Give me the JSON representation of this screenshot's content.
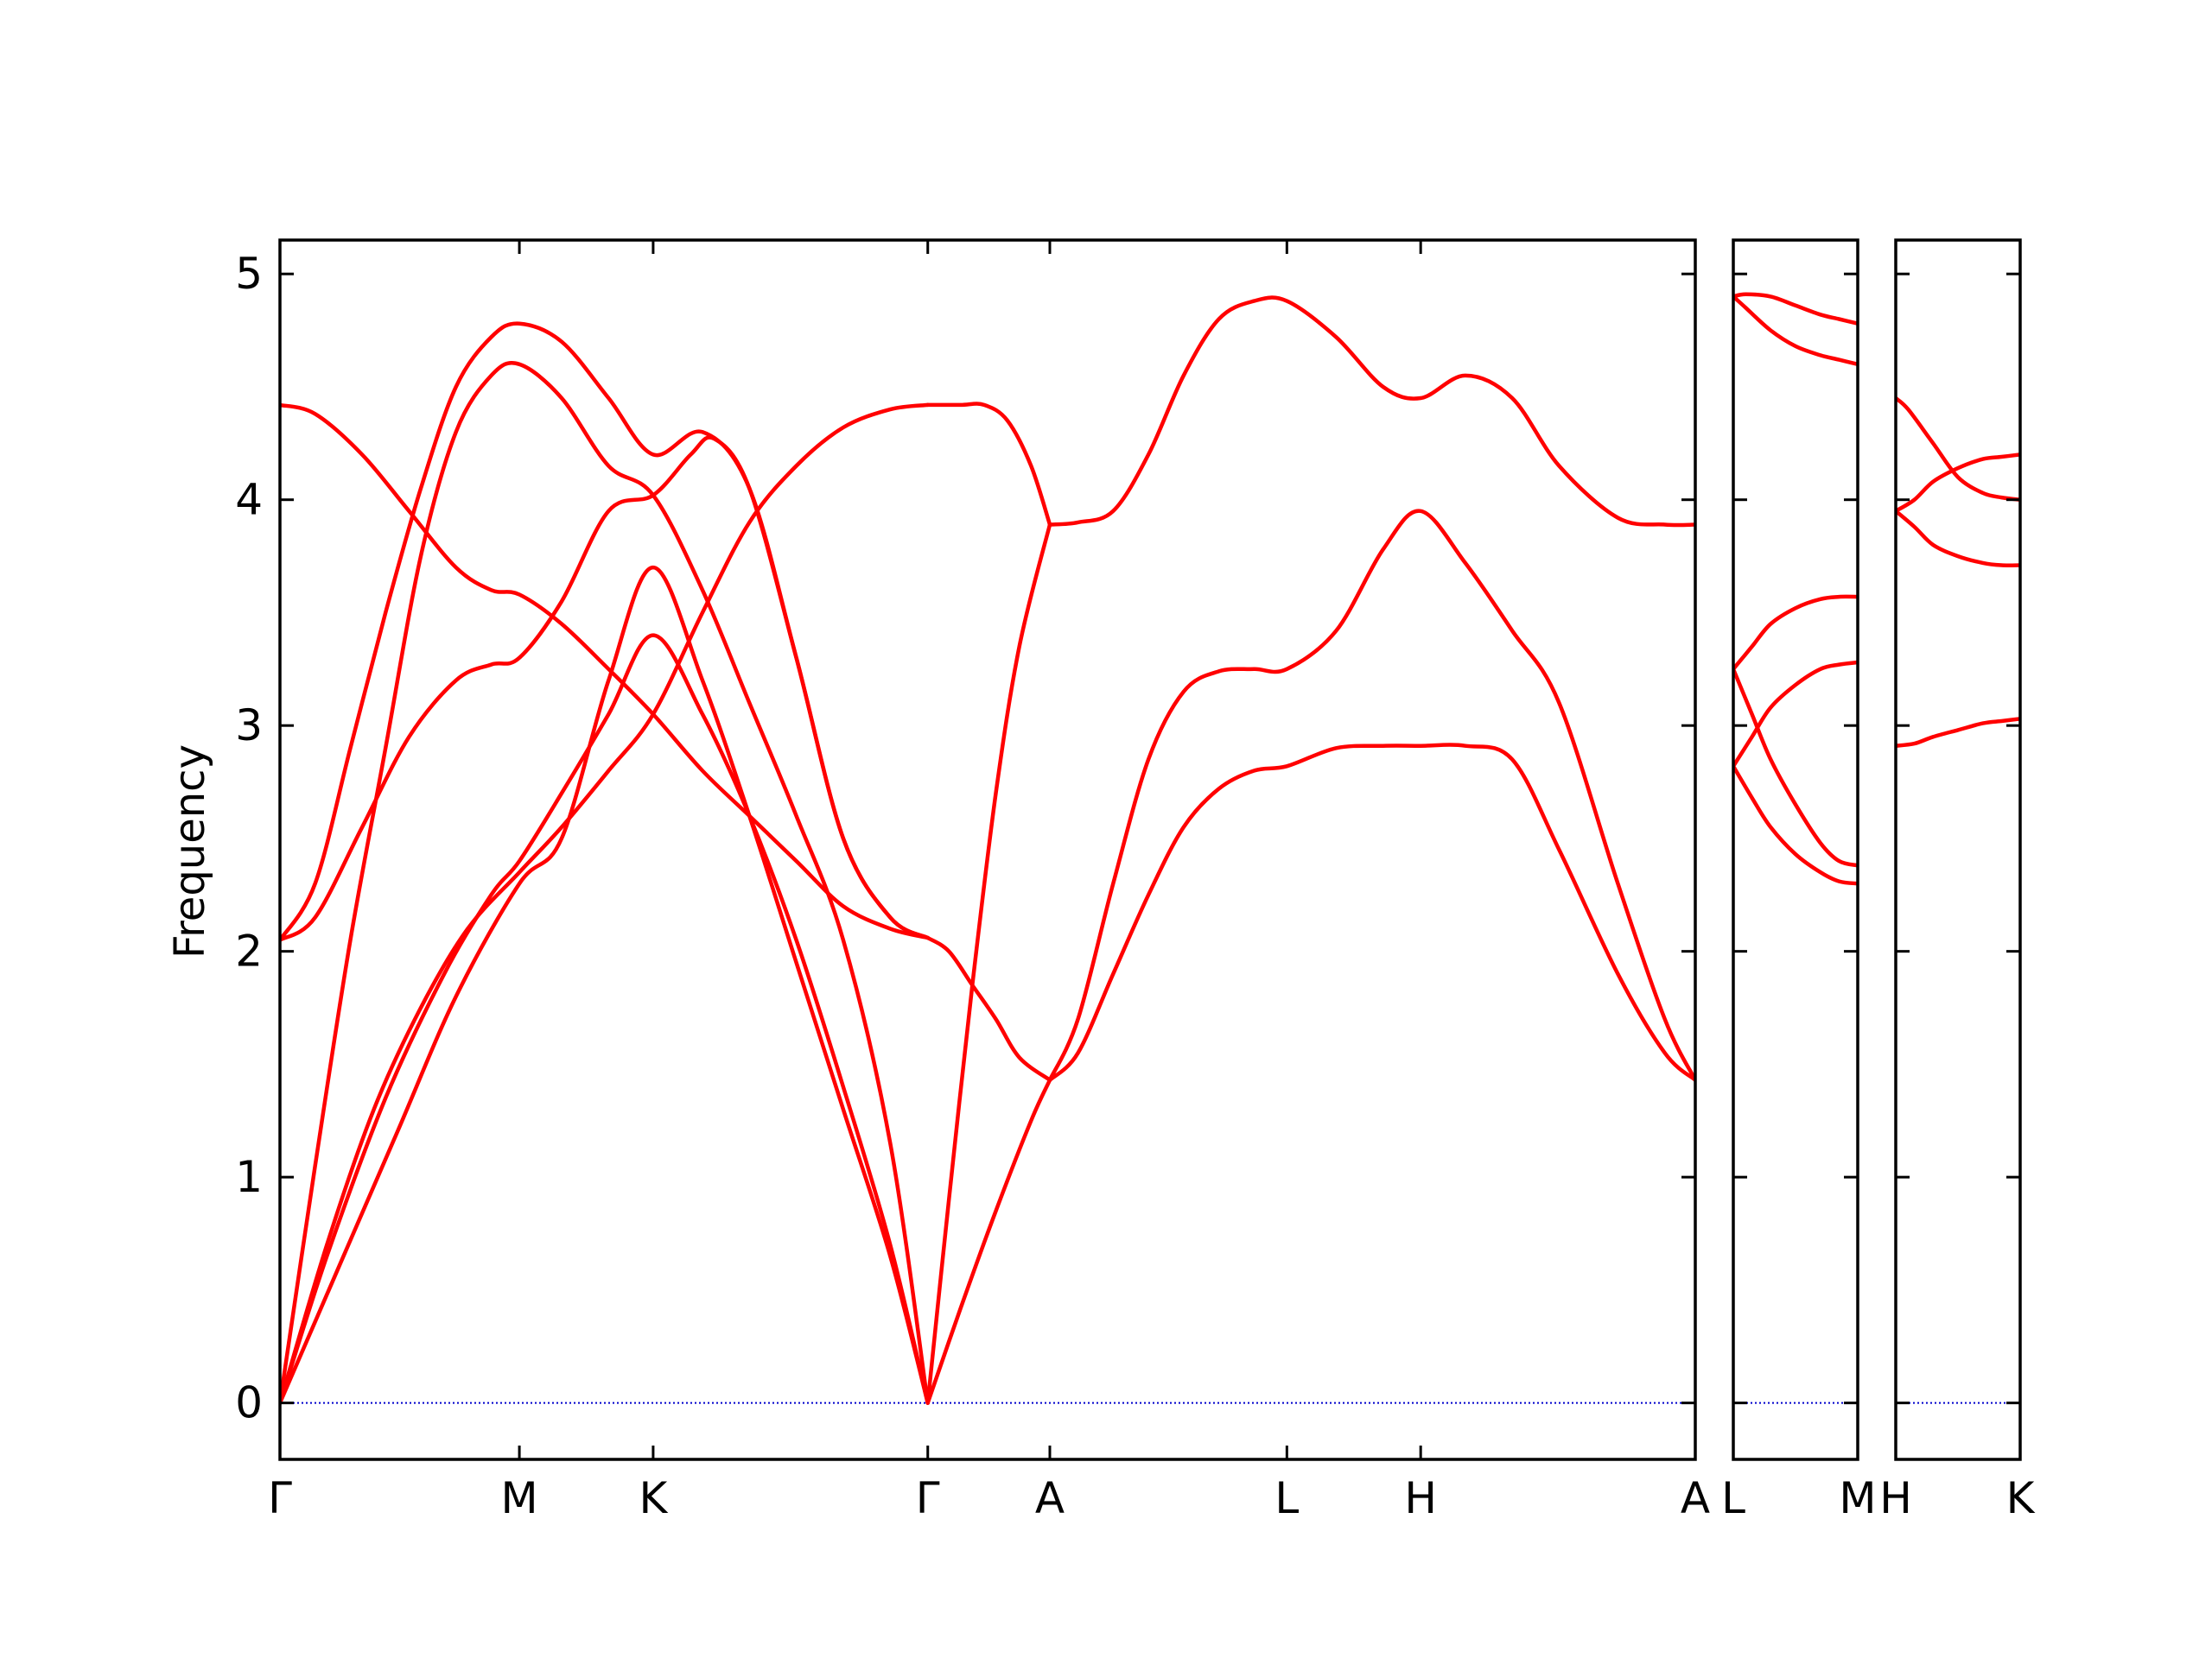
{
  "chart_data": {
    "type": "line",
    "title": "",
    "ylabel": "Frequency",
    "ylim": [
      -0.25,
      5.15
    ],
    "yticks": [
      0,
      1,
      2,
      3,
      4,
      5
    ],
    "grid": false,
    "band_color": "#ff0000",
    "zero_line_color": "#0000cc",
    "panels": [
      {
        "xlim": [
          0,
          6.03
        ],
        "xticks": [
          {
            "x": 0,
            "label": "Γ"
          },
          {
            "x": 1.02,
            "label": "M"
          },
          {
            "x": 1.59,
            "label": "K"
          },
          {
            "x": 2.76,
            "label": "Γ"
          },
          {
            "x": 3.28,
            "label": "A"
          },
          {
            "x": 4.29,
            "label": "L"
          },
          {
            "x": 4.86,
            "label": "H"
          },
          {
            "x": 6.03,
            "label": "A"
          }
        ],
        "series": [
          {
            "x": [
              0,
              0.25,
              0.5,
              0.75,
              1.02,
              1.2,
              1.4,
              1.59,
              1.8,
              2.0,
              2.2,
              2.4,
              2.6,
              2.76
            ],
            "y": [
              0,
              0.6,
              1.2,
              1.8,
              2.3,
              2.5,
              3.2,
              3.7,
              3.2,
              2.6,
              1.95,
              1.3,
              0.65,
              0
            ]
          },
          {
            "x": [
              0,
              0.2,
              0.45,
              0.7,
              0.9,
              1.02,
              1.2,
              1.4,
              1.59,
              1.8,
              2.0,
              2.2,
              2.4,
              2.6,
              2.76
            ],
            "y": [
              0,
              0.65,
              1.35,
              1.9,
              2.25,
              2.4,
              2.7,
              3.05,
              3.4,
              3.05,
              2.6,
              2.05,
              1.4,
              0.7,
              0
            ]
          },
          {
            "x": [
              0,
              0.15,
              0.3,
              0.45,
              0.6,
              0.75,
              0.9,
              1.02,
              1.2,
              1.4,
              1.59,
              1.8,
              2.0,
              2.2,
              2.4,
              2.6,
              2.76
            ],
            "y": [
              0,
              1.05,
              2.05,
              2.9,
              3.75,
              4.3,
              4.55,
              4.6,
              4.45,
              4.15,
              4.02,
              3.6,
              3.1,
              2.6,
              2.05,
              1.15,
              0
            ]
          },
          {
            "x": [
              0,
              0.15,
              0.35,
              0.55,
              0.75,
              0.9,
              1.02,
              1.2,
              1.4,
              1.59,
              1.75,
              1.85,
              2.0,
              2.2,
              2.4,
              2.6,
              2.76
            ],
            "y": [
              2.05,
              2.15,
              2.55,
              2.95,
              3.2,
              3.27,
              3.3,
              3.55,
              3.95,
              4.02,
              4.2,
              4.27,
              4.05,
              3.3,
              2.5,
              2.15,
              2.06
            ]
          },
          {
            "x": [
              0,
              0.15,
              0.3,
              0.45,
              0.6,
              0.75,
              0.9,
              1.02,
              1.2,
              1.4,
              1.59,
              1.8,
              2.0,
              2.2,
              2.4,
              2.6,
              2.76
            ],
            "y": [
              2.05,
              2.3,
              2.9,
              3.5,
              4.05,
              4.5,
              4.72,
              4.78,
              4.7,
              4.45,
              4.2,
              4.3,
              4.05,
              3.3,
              2.5,
              2.15,
              2.06
            ]
          },
          {
            "x": [
              0,
              0.15,
              0.35,
              0.55,
              0.75,
              0.9,
              1.02,
              1.2,
              1.4,
              1.59,
              1.8,
              2.0,
              2.2,
              2.4,
              2.6,
              2.76
            ],
            "y": [
              4.42,
              4.38,
              4.2,
              3.95,
              3.7,
              3.6,
              3.58,
              3.45,
              3.25,
              3.05,
              2.8,
              2.6,
              2.4,
              2.2,
              2.1,
              2.06
            ]
          },
          {
            "x": [
              0,
              0.2,
              0.4,
              0.6,
              0.8,
              1.02,
              1.2,
              1.4,
              1.59,
              1.8,
              2.0,
              2.2,
              2.4,
              2.6,
              2.76
            ],
            "y": [
              0,
              0.7,
              1.3,
              1.75,
              2.1,
              2.35,
              2.55,
              2.8,
              3.05,
              3.5,
              3.9,
              4.15,
              4.32,
              4.4,
              4.42
            ]
          },
          {
            "x": [
              2.76,
              2.9,
              3.05,
              3.2,
              3.28
            ],
            "y": [
              0,
              0.42,
              0.85,
              1.25,
              1.43
            ]
          },
          {
            "x": [
              2.76,
              2.85,
              2.95,
              3.05,
              3.15,
              3.28
            ],
            "y": [
              2.06,
              2.0,
              1.85,
              1.7,
              1.53,
              1.43
            ]
          },
          {
            "x": [
              2.76,
              2.85,
              2.95,
              3.05,
              3.15,
              3.28
            ],
            "y": [
              0,
              0.9,
              1.85,
              2.7,
              3.35,
              3.89
            ]
          },
          {
            "x": [
              2.76,
              2.9,
              3.0,
              3.1,
              3.2,
              3.28
            ],
            "y": [
              4.42,
              4.42,
              4.42,
              4.35,
              4.15,
              3.89
            ]
          },
          {
            "x": [
              3.28,
              3.4,
              3.55,
              3.7,
              3.85,
              4.0,
              4.15,
              4.29,
              4.5,
              4.7,
              4.86,
              5.05,
              5.25,
              5.45,
              5.7,
              5.9,
              6.03
            ],
            "y": [
              3.89,
              3.9,
              3.95,
              4.2,
              4.55,
              4.8,
              4.88,
              4.88,
              4.72,
              4.5,
              4.45,
              4.55,
              4.45,
              4.15,
              3.92,
              3.89,
              3.89
            ]
          },
          {
            "x": [
              3.28,
              3.4,
              3.55,
              3.7,
              3.85,
              4.0,
              4.15,
              4.29,
              4.5,
              4.7,
              4.86,
              5.05,
              5.25,
              5.45,
              5.7,
              5.9,
              6.03
            ],
            "y": [
              1.43,
              1.7,
              2.3,
              2.85,
              3.15,
              3.24,
              3.25,
              3.25,
              3.42,
              3.78,
              3.95,
              3.72,
              3.42,
              3.1,
              2.3,
              1.7,
              1.43
            ]
          },
          {
            "x": [
              3.28,
              3.4,
              3.55,
              3.7,
              3.85,
              4.0,
              4.15,
              4.29,
              4.5,
              4.7,
              4.86,
              5.05,
              5.25,
              5.45,
              5.7,
              5.9,
              6.03
            ],
            "y": [
              1.43,
              1.55,
              1.9,
              2.25,
              2.55,
              2.72,
              2.8,
              2.82,
              2.9,
              2.91,
              2.91,
              2.91,
              2.85,
              2.45,
              1.9,
              1.55,
              1.43
            ]
          }
        ]
      },
      {
        "xlim": [
          0,
          1
        ],
        "xticks": [
          {
            "x": 0,
            "label": "L"
          },
          {
            "x": 1,
            "label": "M"
          }
        ],
        "series": [
          {
            "x": [
              0,
              0.1,
              0.3,
              0.5,
              0.7,
              0.85,
              1
            ],
            "y": [
              4.9,
              4.91,
              4.9,
              4.86,
              4.82,
              4.8,
              4.78
            ]
          },
          {
            "x": [
              0,
              0.1,
              0.3,
              0.5,
              0.7,
              0.85,
              1
            ],
            "y": [
              4.9,
              4.85,
              4.75,
              4.68,
              4.64,
              4.62,
              4.6
            ]
          },
          {
            "x": [
              0,
              0.15,
              0.3,
              0.5,
              0.7,
              0.85,
              1
            ],
            "y": [
              3.25,
              3.35,
              3.45,
              3.52,
              3.56,
              3.57,
              3.57
            ]
          },
          {
            "x": [
              0,
              0.15,
              0.3,
              0.5,
              0.7,
              0.85,
              1
            ],
            "y": [
              2.82,
              2.95,
              3.08,
              3.18,
              3.25,
              3.27,
              3.28
            ]
          },
          {
            "x": [
              0,
              0.15,
              0.3,
              0.5,
              0.7,
              0.85,
              1
            ],
            "y": [
              3.25,
              3.05,
              2.85,
              2.65,
              2.48,
              2.4,
              2.38
            ]
          },
          {
            "x": [
              0,
              0.15,
              0.3,
              0.5,
              0.7,
              0.85,
              1
            ],
            "y": [
              2.82,
              2.68,
              2.55,
              2.43,
              2.35,
              2.31,
              2.3
            ]
          }
        ]
      },
      {
        "xlim": [
          0,
          1
        ],
        "xticks": [
          {
            "x": 0,
            "label": "H"
          },
          {
            "x": 1,
            "label": "K"
          }
        ],
        "series": [
          {
            "x": [
              0,
              0.1,
              0.3,
              0.5,
              0.7,
              0.85,
              1
            ],
            "y": [
              4.45,
              4.4,
              4.25,
              4.1,
              4.03,
              4.01,
              4.0
            ]
          },
          {
            "x": [
              0,
              0.15,
              0.3,
              0.5,
              0.7,
              0.85,
              1
            ],
            "y": [
              3.95,
              4.0,
              4.08,
              4.14,
              4.18,
              4.19,
              4.2
            ]
          },
          {
            "x": [
              0,
              0.15,
              0.3,
              0.5,
              0.7,
              0.85,
              1
            ],
            "y": [
              3.95,
              3.88,
              3.8,
              3.75,
              3.72,
              3.71,
              3.71
            ]
          },
          {
            "x": [
              0,
              0.15,
              0.3,
              0.5,
              0.7,
              0.85,
              1
            ],
            "y": [
              2.91,
              2.92,
              2.95,
              2.98,
              3.01,
              3.02,
              3.03
            ]
          }
        ]
      }
    ]
  }
}
